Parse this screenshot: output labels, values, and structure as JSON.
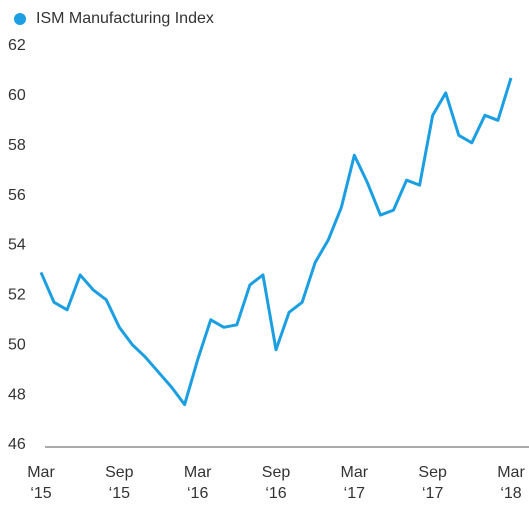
{
  "chart_data": {
    "type": "line",
    "series": [
      {
        "name": "ISM Manufacturing Index",
        "color": "#1b9fe2",
        "values": [
          53.0,
          51.8,
          51.5,
          52.9,
          52.3,
          51.9,
          50.8,
          50.1,
          49.6,
          49.0,
          48.4,
          47.7,
          49.5,
          51.1,
          50.8,
          50.9,
          52.5,
          52.9,
          49.9,
          51.4,
          51.8,
          53.4,
          54.3,
          55.6,
          57.7,
          56.6,
          55.3,
          55.5,
          56.7,
          56.5,
          59.3,
          60.2,
          58.5,
          58.2,
          59.3,
          59.1,
          60.8
        ]
      }
    ],
    "categories": [
      [
        "Mar",
        "‘15"
      ],
      null,
      null,
      null,
      null,
      null,
      [
        "Sep",
        "‘15"
      ],
      null,
      null,
      null,
      null,
      null,
      [
        "Mar",
        "‘16"
      ],
      null,
      null,
      null,
      null,
      null,
      [
        "Sep",
        "‘16"
      ],
      null,
      null,
      null,
      null,
      null,
      [
        "Mar",
        "‘17"
      ],
      null,
      null,
      null,
      null,
      null,
      [
        "Sep",
        "‘17"
      ],
      null,
      null,
      null,
      null,
      null,
      [
        "Mar",
        "‘18"
      ]
    ],
    "ylim": [
      46,
      62
    ],
    "yticks": [
      46,
      48,
      50,
      52,
      54,
      56,
      58,
      60,
      62
    ],
    "grid": false,
    "legend": "top-left"
  }
}
